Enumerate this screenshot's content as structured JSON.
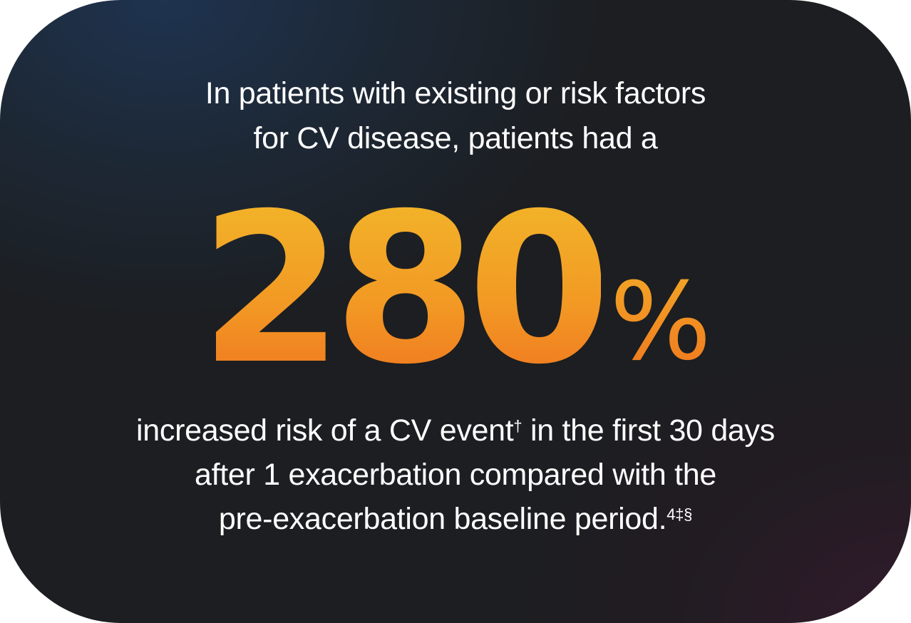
{
  "intro": {
    "line1": "In patients with existing or risk factors",
    "line2": "for CV disease, patients had a"
  },
  "stat": {
    "number": "280",
    "percent": "%"
  },
  "outro": {
    "line1_pre": "increased risk of a CV event",
    "line1_sup": "†",
    "line1_post": " in the first 30 days",
    "line2": "after 1 exacerbation compared with the",
    "line3_pre": "pre-exacerbation baseline period.",
    "line3_sup": "4‡§"
  },
  "colors": {
    "background_dark": "#1c1e21",
    "background_top_left": "#1e3452",
    "background_bottom_right": "#321a2c",
    "stat_gradient_top": "#f2b72a",
    "stat_gradient_bottom": "#f0741f",
    "text": "#ffffff"
  }
}
